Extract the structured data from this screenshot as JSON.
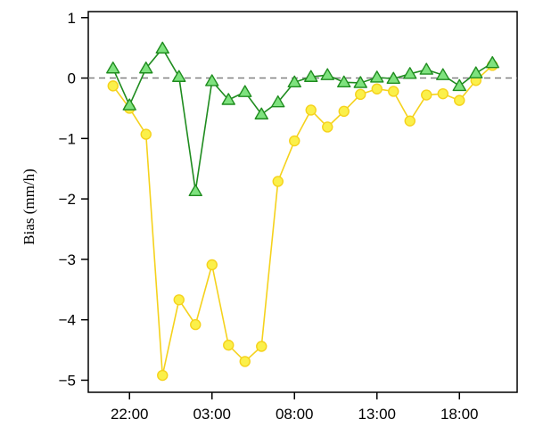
{
  "chart_data": {
    "type": "line",
    "title": "",
    "xlabel": "",
    "ylabel": "Bias (mm/h)",
    "ylim": [
      -5.2,
      1.1
    ],
    "xlim": [
      19.5,
      45.5
    ],
    "yticks": [
      1,
      0,
      -1,
      -2,
      -3,
      -4,
      -5
    ],
    "ytick_labels": [
      "1",
      "0",
      "−1",
      "−2",
      "−3",
      "−4",
      "−5"
    ],
    "xticks": [
      22,
      27,
      32,
      37,
      42
    ],
    "xtick_labels": [
      "22:00",
      "03:00",
      "08:00",
      "13:00",
      "18:00"
    ],
    "reference_line": 0,
    "grid": false,
    "x": [
      21,
      22,
      23,
      24,
      25,
      26,
      27,
      28,
      29,
      30,
      31,
      32,
      33,
      34,
      35,
      36,
      37,
      38,
      39,
      40,
      41,
      42,
      43,
      44
    ],
    "series": [
      {
        "marker": "circle",
        "color": "#f5d21c",
        "fill": "#fbf04a",
        "values": [
          -0.13,
          -0.5,
          -0.93,
          -4.92,
          -3.67,
          -4.08,
          -3.09,
          -4.42,
          -4.69,
          -4.44,
          -1.71,
          -1.04,
          -0.53,
          -0.81,
          -0.55,
          -0.27,
          -0.18,
          -0.22,
          -0.71,
          -0.28,
          -0.26,
          -0.37,
          -0.04,
          0.21
        ]
      },
      {
        "marker": "triangle",
        "color": "#1f8c1f",
        "fill": "#7ee27e",
        "values": [
          0.16,
          -0.45,
          0.16,
          0.49,
          0.02,
          -1.87,
          -0.05,
          -0.36,
          -0.23,
          -0.6,
          -0.4,
          -0.07,
          0.02,
          0.05,
          -0.07,
          -0.08,
          0.01,
          -0.01,
          0.07,
          0.14,
          0.05,
          -0.13,
          0.08,
          0.25
        ]
      }
    ]
  }
}
